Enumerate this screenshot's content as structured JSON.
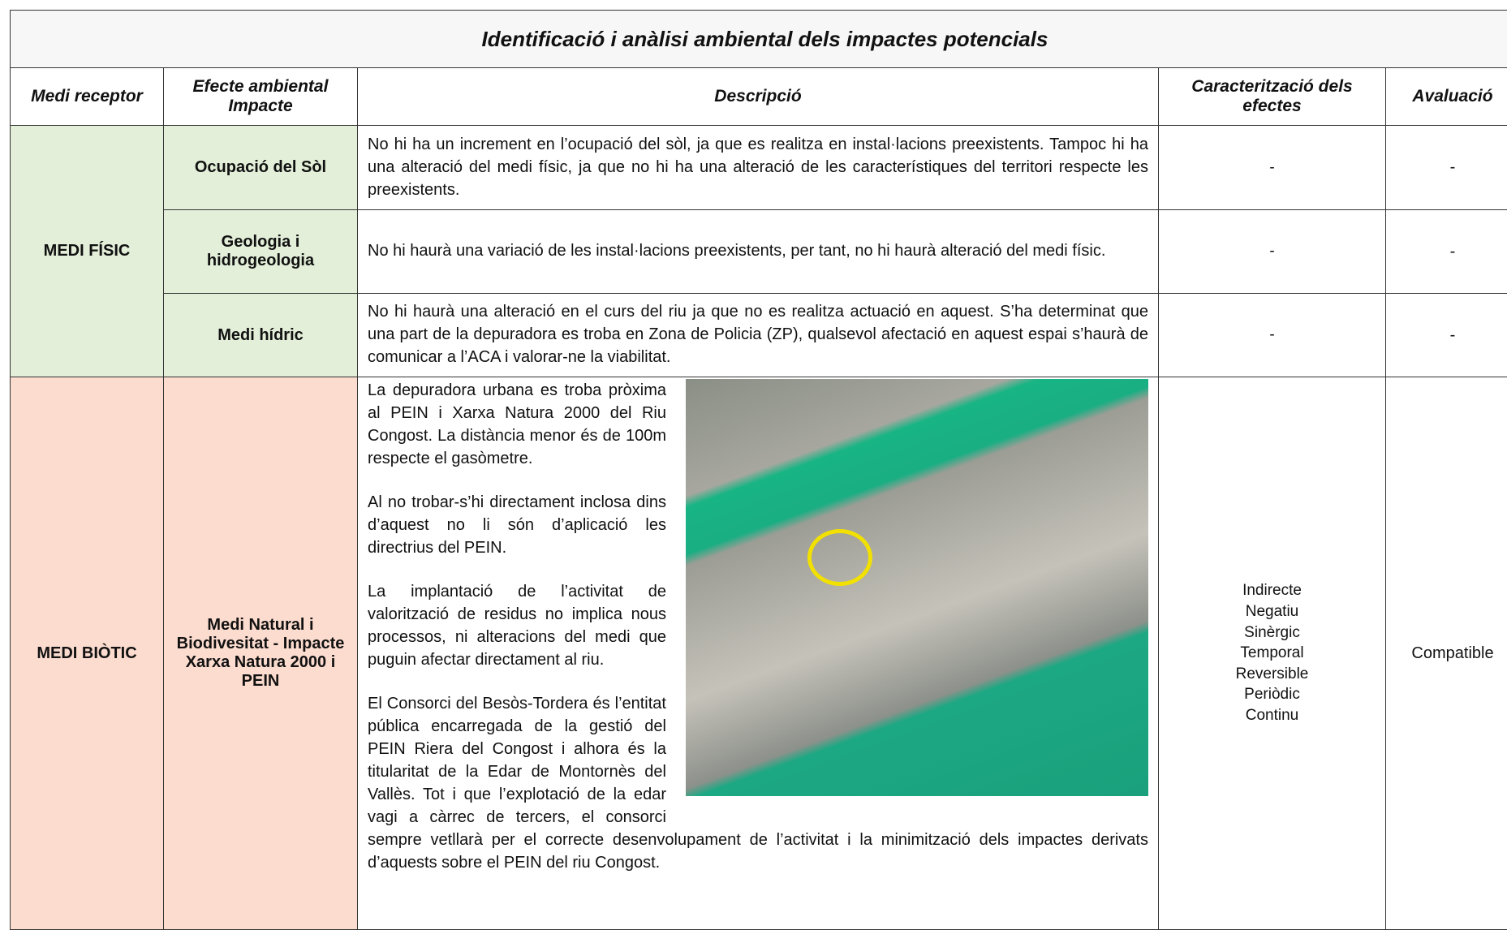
{
  "title": "Identificació i anàlisi ambiental dels impactes potencials",
  "headers": [
    "Medi receptor",
    "Efecte ambiental Impacte",
    "Descripció",
    "Caracterització dels efectes",
    "Avaluació"
  ],
  "groups": [
    {
      "medi": "MEDI FÍSIC",
      "rows": [
        {
          "efecte": "Ocupació del Sòl",
          "descripcio": [
            "No hi ha un increment en l’ocupació del sòl, ja que es realitza en instal·lacions preexistents. Tampoc hi ha una alteració del medi físic, ja que no hi ha una alteració de les característiques del territori respecte les preexistents."
          ],
          "caracteritzacio": [
            "-"
          ],
          "avaluacio": "-"
        },
        {
          "efecte": "Geologia i hidrogeologia",
          "descripcio": [
            "No hi haurà una variació de les instal·lacions preexistents, per tant, no hi haurà alteració del medi físic."
          ],
          "caracteritzacio": [
            "-"
          ],
          "avaluacio": "-"
        },
        {
          "efecte": "Medi hídric",
          "descripcio": [
            "No hi haurà una alteració en el curs del riu ja que no es realitza actuació en aquest. S’ha determinat que una part de la depuradora es troba en Zona de Policia (ZP), qualsevol afectació en aquest espai s’haurà de comunicar a l’ACA i valorar-ne la viabilitat."
          ],
          "caracteritzacio": [
            "-"
          ],
          "avaluacio": "-"
        }
      ]
    },
    {
      "medi": "MEDI BIÒTIC",
      "rows": [
        {
          "efecte": "Medi Natural i Biodivesitat - Impacte Xarxa Natura 2000 i PEIN",
          "descripcio": [
            "La depuradora urbana es troba pròxima al PEIN i Xarxa Natura 2000 del Riu Congost. La distància menor és de 100m respecte el gasòmetre.",
            "Al no trobar-s’hi directament inclosa dins d’aquest no li són d’aplicació les directrius del PEIN.",
            "La implantació de l’activitat de valorització de residus no implica nous processos, ni alteracions del medi que puguin afectar directament al riu.",
            "El Consorci del Besòs-Tordera és l’entitat pública encarregada de la gestió del PEIN Riera del Congost i alhora és la titularitat de la Edar de Montornès del Vallès. Tot i que l’explotació de la edar vagi a càrrec de tercers, el consorci sempre vetllarà per el correcte desenvolupament de l’activitat i la minimització dels impactes derivats d’aquests sobre el PEIN del riu Congost."
          ],
          "caracteritzacio": [
            "Indirecte",
            "Negatiu",
            "Sinèrgic",
            "Temporal",
            "Reversible",
            "Periòdic",
            "Continu"
          ],
          "avaluacio": "Compatible"
        }
      ]
    }
  ]
}
